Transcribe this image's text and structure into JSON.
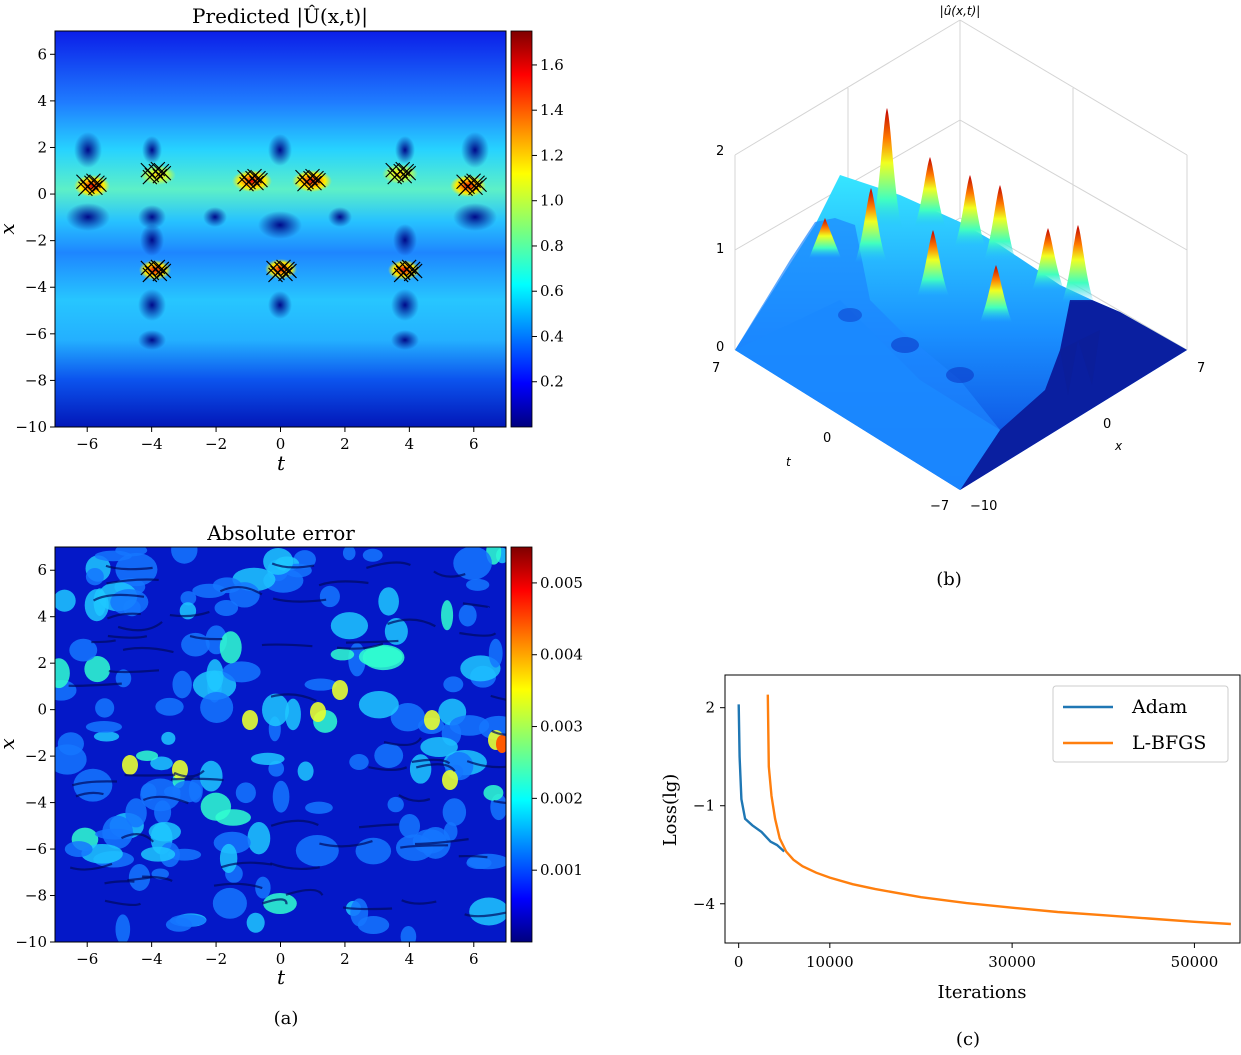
{
  "panels": {
    "a_top": {
      "title": "Predicted |Û(x,t)|",
      "xlabel": "t",
      "ylabel": "x",
      "xticks": [
        "−6",
        "−4",
        "−2",
        "0",
        "2",
        "4",
        "6"
      ],
      "yticks": [
        "6",
        "4",
        "2",
        "0",
        "−2",
        "−4",
        "−6",
        "−8",
        "−10"
      ],
      "colorbar_ticks": [
        "1.6",
        "1.4",
        "1.2",
        "1.0",
        "0.8",
        "0.6",
        "0.4",
        "0.2"
      ]
    },
    "a_bottom": {
      "title": "Absolute error",
      "xlabel": "t",
      "ylabel": "x",
      "xticks": [
        "−6",
        "−4",
        "−2",
        "0",
        "2",
        "4",
        "6"
      ],
      "yticks": [
        "6",
        "4",
        "2",
        "0",
        "−2",
        "−4",
        "−6",
        "−8",
        "−10"
      ],
      "colorbar_ticks": [
        "0.005",
        "0.004",
        "0.003",
        "0.002",
        "0.001"
      ]
    },
    "b": {
      "title": "|û(x,t)|",
      "zticks": [
        "2",
        "1",
        "0"
      ],
      "t_ticks": [
        "7",
        "0",
        "−7"
      ],
      "x_ticks": [
        "7",
        "0",
        "−10"
      ],
      "t_label": "t",
      "x_label": "x"
    },
    "c": {
      "xlabel": "Iterations",
      "ylabel": "Loss(lg)",
      "xticks": [
        "0",
        "10000",
        "30000",
        "50000"
      ],
      "yticks": [
        "2",
        "−1",
        "−4"
      ],
      "legend": [
        "Adam",
        "L-BFGS"
      ]
    }
  },
  "captions": {
    "a": "(a)",
    "b": "(b)",
    "c": "(c)"
  },
  "colors": {
    "adam": "#1f77b4",
    "lbfgs": "#ff7f0e",
    "markers": "#000000"
  },
  "chart_data": [
    {
      "type": "heatmap",
      "title": "Predicted |Û(x,t)|",
      "xlabel": "t",
      "ylabel": "x",
      "xlim": [
        -7,
        7
      ],
      "ylim": [
        -10,
        7
      ],
      "colorbar_range": [
        0,
        1.75
      ],
      "colormap": "jet",
      "training_points_marked": "x",
      "x_marker_clusters_tx": [
        [
          -5.9,
          0.4
        ],
        [
          -3.9,
          0.9
        ],
        [
          -0.9,
          0.6
        ],
        [
          0.9,
          0.6
        ],
        [
          3.7,
          0.9
        ],
        [
          5.9,
          0.4
        ],
        [
          -3.9,
          -3.3
        ],
        [
          0.0,
          -3.3
        ],
        [
          3.9,
          -3.3
        ]
      ]
    },
    {
      "type": "heatmap",
      "title": "Absolute error",
      "xlabel": "t",
      "ylabel": "x",
      "xlim": [
        -7,
        7
      ],
      "ylim": [
        -10,
        7
      ],
      "colorbar_range": [
        0,
        0.0055
      ],
      "colormap": "jet"
    },
    {
      "type": "surface",
      "title": "|û(x,t)|",
      "t_range": [
        -7,
        7
      ],
      "x_range": [
        -10,
        7
      ],
      "z_range": [
        0,
        2
      ],
      "colormap": "jet"
    },
    {
      "type": "line",
      "xlabel": "Iterations",
      "ylabel": "Loss(lg)",
      "xlim": [
        -1500,
        55000
      ],
      "ylim": [
        -5.2,
        3.0
      ],
      "legend_position": "top-right",
      "series": [
        {
          "name": "Adam",
          "x": [
            0,
            100,
            300,
            700,
            1500,
            2500,
            3500,
            4200,
            5000
          ],
          "y": [
            2.1,
            0.5,
            -0.8,
            -1.4,
            -1.6,
            -1.8,
            -2.1,
            -2.2,
            -2.4
          ]
        },
        {
          "name": "L-BFGS",
          "x": [
            3200,
            3300,
            3600,
            4000,
            4500,
            5200,
            6000,
            7000,
            8500,
            10000,
            12500,
            15000,
            20000,
            25000,
            30000,
            35000,
            40000,
            45000,
            50000,
            54000
          ],
          "y": [
            2.4,
            0.2,
            -0.7,
            -1.4,
            -2.0,
            -2.4,
            -2.65,
            -2.85,
            -3.05,
            -3.2,
            -3.4,
            -3.55,
            -3.8,
            -3.98,
            -4.12,
            -4.25,
            -4.35,
            -4.45,
            -4.55,
            -4.62
          ]
        }
      ]
    }
  ]
}
